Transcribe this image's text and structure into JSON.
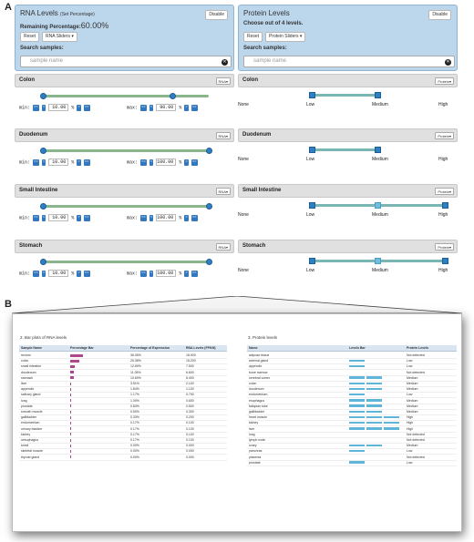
{
  "labels": {
    "a": "A",
    "b": "B"
  },
  "rna": {
    "title": "RNA Levels",
    "title_suffix": "(Set Percentage)",
    "disable_label": "Disable",
    "remaining_label": "Remaining Percentage:",
    "remaining_value": "60.00%",
    "reset_label": "Reset",
    "sliders_label": "RNA Sliders ▾",
    "search_label": "Search samples:",
    "search_placeholder": "sample name",
    "min_label": "min:",
    "max_label": "max:",
    "pct_unit": "%",
    "btn_ll": "<<",
    "btn_l": "<",
    "btn_r": ">",
    "btn_rr": ">>",
    "tissues": [
      {
        "name": "Colon",
        "select": "RNA▾",
        "min": "10.00",
        "max": "90.00",
        "min_frac": 0.0,
        "max_frac": 0.78
      },
      {
        "name": "Duodenum",
        "select": "RNA▾",
        "min": "10.00",
        "max": "100.00",
        "min_frac": 0.0,
        "max_frac": 1.0
      },
      {
        "name": "Small Intestine",
        "select": "RNA▾",
        "min": "10.00",
        "max": "100.00",
        "min_frac": 0.0,
        "max_frac": 1.0
      },
      {
        "name": "Stomach",
        "select": "RNA▾",
        "min": "10.00",
        "max": "100.00",
        "min_frac": 0.0,
        "max_frac": 1.0
      }
    ]
  },
  "protein": {
    "title": "Protein Levels",
    "disable_label": "Disable",
    "choose_label": "Choose out of 4 levels.",
    "reset_label": "Reset",
    "sliders_label": "Protein Sliders ▾",
    "search_label": "Search samples:",
    "search_placeholder": "sample name",
    "levels": [
      "None",
      "Low",
      "Medium",
      "High"
    ],
    "tissues": [
      {
        "name": "Colon",
        "select": "Protein▾",
        "from": "Low",
        "to": "Medium"
      },
      {
        "name": "Duodenum",
        "select": "Protein▾",
        "from": "Low",
        "to": "Medium"
      },
      {
        "name": "Small Intestine",
        "select": "Protein▾",
        "from": "Low",
        "to": "High"
      },
      {
        "name": "Stomach",
        "select": "Protein▾",
        "from": "Low",
        "to": "High"
      }
    ]
  },
  "rna_table": {
    "title": "2. Bar plots of RNA levels",
    "headers": [
      "Sample Name",
      "Percentage Bar",
      "Percentage of Expression",
      "RNA Levels (FPKM)"
    ],
    "rows": [
      [
        "rectum",
        0.3605,
        "36.05%",
        "18.900"
      ],
      [
        "colon",
        0.2538,
        "25.38%",
        "15.200"
      ],
      [
        "small intestine",
        0.1269,
        "12.69%",
        "7.500"
      ],
      [
        "duodenum",
        0.1105,
        "11.05%",
        "6.600"
      ],
      [
        "stomach",
        0.1069,
        "10.69%",
        "6.400"
      ],
      [
        "liver",
        0.0351,
        "3.51%",
        "2.100"
      ],
      [
        "appendix",
        0.0184,
        "1.84%",
        "1.100"
      ],
      [
        "salivary gland",
        0.0117,
        "1.17%",
        "0.700"
      ],
      [
        "lung",
        0.01,
        "1.00%",
        "0.600"
      ],
      [
        "prostate",
        0.0083,
        "0.83%",
        "0.500"
      ],
      [
        "smooth muscle",
        0.005,
        "0.50%",
        "0.300"
      ],
      [
        "gallbladder",
        0.0033,
        "0.33%",
        "0.200"
      ],
      [
        "endometrium",
        0.0017,
        "0.17%",
        "0.100"
      ],
      [
        "urinary bladder",
        0.0017,
        "0.17%",
        "0.100"
      ],
      [
        "kidney",
        0.0017,
        "0.17%",
        "0.100"
      ],
      [
        "oesophagus",
        0.0017,
        "0.17%",
        "0.100"
      ],
      [
        "tonsil",
        0.0,
        "0.00%",
        "0.000"
      ],
      [
        "skeletal muscle",
        0.0,
        "0.00%",
        "0.000"
      ],
      [
        "thyroid gland",
        0.0,
        "0.00%",
        "0.000"
      ]
    ]
  },
  "protein_table": {
    "title": "3. Protein levels",
    "headers": [
      "Name",
      "Levels Bar",
      "Protein Levels"
    ],
    "rows": [
      [
        "adipose tissue",
        0,
        "Not detected"
      ],
      [
        "adrenal gland",
        1,
        "Low"
      ],
      [
        "appendix",
        1,
        "Low"
      ],
      [
        "bone marrow",
        0,
        "Not detected"
      ],
      [
        "cerebral cortex",
        2,
        "Medium"
      ],
      [
        "colon",
        2,
        "Medium"
      ],
      [
        "duodenum",
        2,
        "Medium"
      ],
      [
        "endometrium",
        1,
        "Low"
      ],
      [
        "esophagus",
        2,
        "Medium"
      ],
      [
        "fallopian tube",
        2,
        "Medium"
      ],
      [
        "gallbladder",
        2,
        "Medium"
      ],
      [
        "heart muscle",
        3,
        "High"
      ],
      [
        "kidney",
        3,
        "High"
      ],
      [
        "liver",
        3,
        "High"
      ],
      [
        "lung",
        0,
        "Not detected"
      ],
      [
        "lymph node",
        0,
        "Not detected"
      ],
      [
        "ovary",
        2,
        "Medium"
      ],
      [
        "pancreas",
        1,
        "Low"
      ],
      [
        "placenta",
        0,
        "Not detected"
      ],
      [
        "prostate",
        1,
        "Low"
      ]
    ]
  },
  "colors": {
    "header_bg": "#bcd6ec",
    "slider_track": "#89b68a",
    "knob": "#2e7fc4",
    "percent_bar": "#b0478e",
    "level_bar": "#5fb4d9"
  }
}
